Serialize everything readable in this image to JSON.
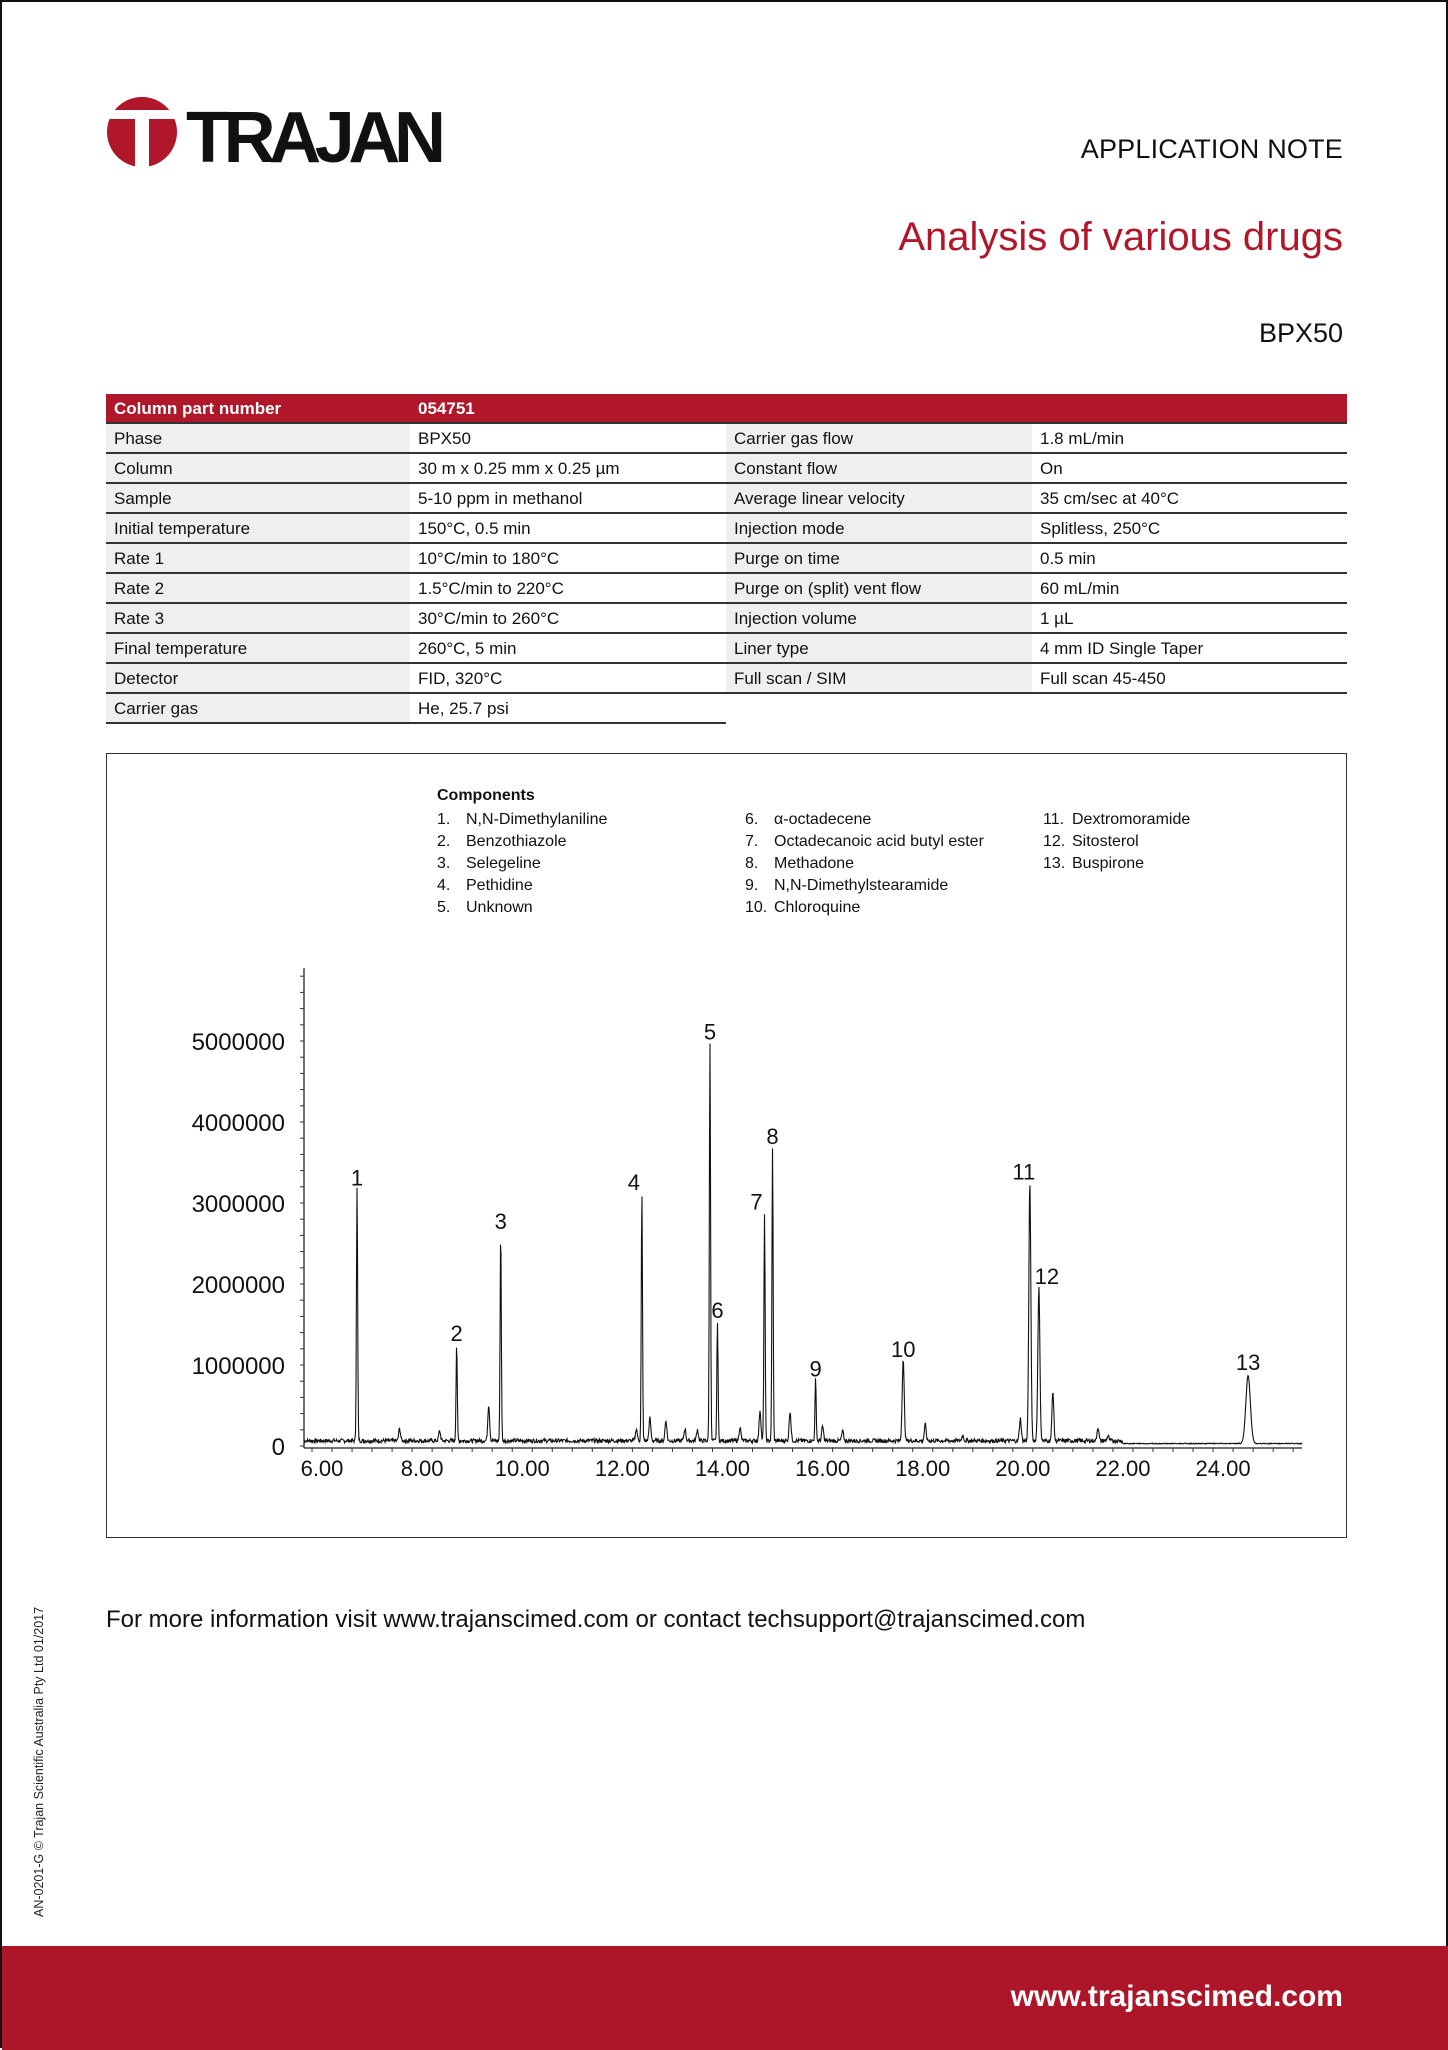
{
  "brand": {
    "name": "TRAJAN",
    "color": "#b0172a"
  },
  "header": {
    "doc_type": "APPLICATION NOTE",
    "title": "Analysis of various drugs",
    "column_name": "BPX50"
  },
  "conditions": {
    "header": {
      "label": "Column part number",
      "value": "054751"
    },
    "rows": [
      {
        "l1": "Phase",
        "v1": "BPX50",
        "l2": "Carrier gas flow",
        "v2": "1.8 mL/min"
      },
      {
        "l1": "Column",
        "v1": "30 m x 0.25 mm x 0.25 µm",
        "l2": "Constant flow",
        "v2": "On"
      },
      {
        "l1": "Sample",
        "v1": "5-10 ppm in methanol",
        "l2": "Average linear velocity",
        "v2": "35 cm/sec at 40°C"
      },
      {
        "l1": "Initial temperature",
        "v1": "150°C, 0.5 min",
        "l2": "Injection mode",
        "v2": "Splitless, 250°C"
      },
      {
        "l1": "Rate 1",
        "v1": "10°C/min to 180°C",
        "l2": "Purge on time",
        "v2": "0.5 min"
      },
      {
        "l1": "Rate 2",
        "v1": "1.5°C/min to 220°C",
        "l2": "Purge on (split) vent flow",
        "v2": "60 mL/min"
      },
      {
        "l1": "Rate 3",
        "v1": "30°C/min to 260°C",
        "l2": "Injection volume",
        "v2": "1 µL"
      },
      {
        "l1": "Final temperature",
        "v1": "260°C, 5 min",
        "l2": "Liner type",
        "v2": "4 mm ID Single Taper"
      },
      {
        "l1": "Detector",
        "v1": "FID, 320°C",
        "l2": "Full scan / SIM",
        "v2": "Full scan 45-450"
      },
      {
        "l1": "Carrier gas",
        "v1": "He, 25.7 psi"
      }
    ]
  },
  "components": {
    "title": "Components",
    "items": [
      {
        "n": "1.",
        "name": "N,N-Dimethylaniline"
      },
      {
        "n": "2.",
        "name": "Benzothiazole"
      },
      {
        "n": "3.",
        "name": "Selegeline"
      },
      {
        "n": "4.",
        "name": "Pethidine"
      },
      {
        "n": "5.",
        "name": "Unknown"
      },
      {
        "n": "6.",
        "name": "α-octadecene"
      },
      {
        "n": "7.",
        "name": "Octadecanoic acid butyl ester"
      },
      {
        "n": "8.",
        "name": "Methadone"
      },
      {
        "n": "9.",
        "name": "N,N-Dimethylstearamide"
      },
      {
        "n": "10.",
        "name": "Chloroquine"
      },
      {
        "n": "11.",
        "name": "Dextromoramide"
      },
      {
        "n": "12.",
        "name": "Sitosterol"
      },
      {
        "n": "13.",
        "name": "Buspirone"
      }
    ]
  },
  "chart_data": {
    "type": "line",
    "title": "",
    "xlabel": "",
    "ylabel": "",
    "xlim": [
      5.64,
      25.6
    ],
    "ylim": [
      0,
      5900000
    ],
    "xticks": [
      "6.00",
      "8.00",
      "10.00",
      "12.00",
      "14.00",
      "16.00",
      "18.00",
      "20.00",
      "22.00",
      "24.00"
    ],
    "yticks": [
      "0",
      "1000000",
      "2000000",
      "3000000",
      "4000000",
      "5000000"
    ],
    "grid": false,
    "peaks": [
      {
        "label": "1",
        "t": 6.7,
        "y": 3120000
      },
      {
        "label": "2",
        "t": 8.69,
        "y": 1200000
      },
      {
        "label": "3",
        "t": 9.57,
        "y": 2580000
      },
      {
        "label": "4",
        "t": 12.39,
        "y": 3060000
      },
      {
        "label": "5",
        "t": 13.75,
        "y": 4920000
      },
      {
        "label": "6",
        "t": 13.9,
        "y": 1480000
      },
      {
        "label": "7",
        "t": 14.84,
        "y": 2820000
      },
      {
        "label": "8",
        "t": 15.0,
        "y": 3630000
      },
      {
        "label": "9",
        "t": 15.86,
        "y": 760000
      },
      {
        "label": "10",
        "t": 17.61,
        "y": 1000000
      },
      {
        "label": "11",
        "t": 20.14,
        "y": 3190000
      },
      {
        "label": "12",
        "t": 20.32,
        "y": 1900000
      },
      {
        "label": "13",
        "t": 24.5,
        "y": 840000
      }
    ],
    "minor_peaks": [
      {
        "t": 7.55,
        "y": 150000
      },
      {
        "t": 8.35,
        "y": 120000
      },
      {
        "t": 9.33,
        "y": 450000
      },
      {
        "t": 12.28,
        "y": 150000
      },
      {
        "t": 12.55,
        "y": 280000
      },
      {
        "t": 12.87,
        "y": 250000
      },
      {
        "t": 13.25,
        "y": 150000
      },
      {
        "t": 13.5,
        "y": 140000
      },
      {
        "t": 14.35,
        "y": 170000
      },
      {
        "t": 14.75,
        "y": 380000
      },
      {
        "t": 15.35,
        "y": 370000
      },
      {
        "t": 16.0,
        "y": 180000
      },
      {
        "t": 16.4,
        "y": 120000
      },
      {
        "t": 18.05,
        "y": 200000
      },
      {
        "t": 18.8,
        "y": 70000
      },
      {
        "t": 19.95,
        "y": 280000
      },
      {
        "t": 20.6,
        "y": 620000
      },
      {
        "t": 21.5,
        "y": 170000
      },
      {
        "t": 21.7,
        "y": 60000
      }
    ]
  },
  "footer": {
    "more_info": "For more information visit www.trajanscimed.com or contact techsupport@trajanscimed.com",
    "legal": "AN-0201-G © Trajan Scientific Australia Pty Ltd 01/2017",
    "url": "www.trajanscimed.com"
  }
}
